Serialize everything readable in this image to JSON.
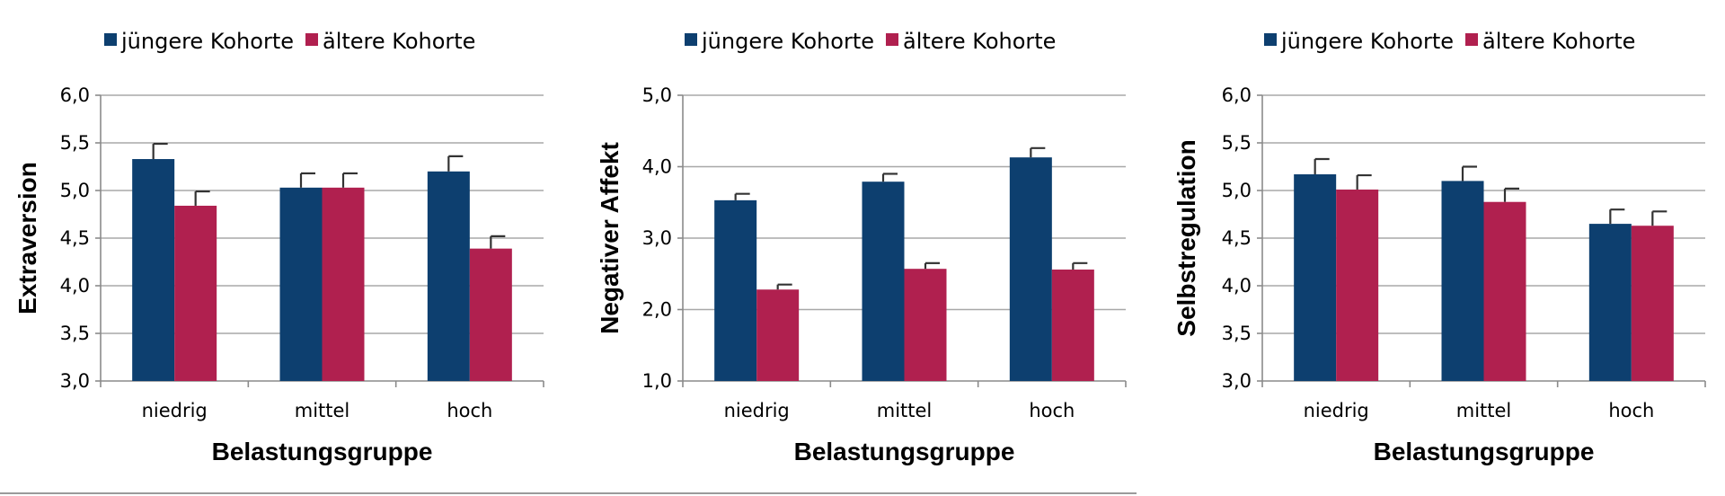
{
  "colors": {
    "young": "#0d3f6f",
    "old": "#b0204f"
  },
  "chart_data": [
    {
      "type": "bar",
      "legend": {
        "items": [
          "jüngere Kohorte",
          "ältere Kohorte"
        ],
        "position": "top-left"
      },
      "categories": [
        "niedrig",
        "mittel",
        "hoch"
      ],
      "series": [
        {
          "name": "jüngere Kohorte",
          "values": [
            5.33,
            5.03,
            5.2
          ],
          "errors": [
            0.16,
            0.15,
            0.16
          ]
        },
        {
          "name": "ältere Kohorte",
          "values": [
            4.84,
            5.03,
            4.39
          ],
          "errors": [
            0.15,
            0.15,
            0.13
          ]
        }
      ],
      "xlabel": "Belastungsgruppe",
      "ylabel": "Extraversion",
      "ylim": [
        3.0,
        6.0
      ],
      "yticks": [
        "3,0",
        "3,5",
        "4,0",
        "4,5",
        "5,0",
        "5,5",
        "6,0"
      ],
      "grid": true
    },
    {
      "type": "bar",
      "legend": {
        "items": [
          "jüngere Kohorte",
          "ältere Kohorte"
        ],
        "position": "top-left"
      },
      "categories": [
        "niedrig",
        "mittel",
        "hoch"
      ],
      "series": [
        {
          "name": "jüngere Kohorte",
          "values": [
            3.53,
            3.79,
            4.13
          ],
          "errors": [
            0.09,
            0.11,
            0.13
          ]
        },
        {
          "name": "ältere Kohorte",
          "values": [
            2.28,
            2.57,
            2.56
          ],
          "errors": [
            0.07,
            0.08,
            0.09
          ]
        }
      ],
      "xlabel": "Belastungsgruppe",
      "ylabel": "Negativer Affekt",
      "ylim": [
        1.0,
        5.0
      ],
      "yticks": [
        "1,0",
        "2,0",
        "3,0",
        "4,0",
        "5,0"
      ],
      "grid": true
    },
    {
      "type": "bar",
      "legend": {
        "items": [
          "jüngere Kohorte",
          "ältere Kohorte"
        ],
        "position": "top-left"
      },
      "categories": [
        "niedrig",
        "mittel",
        "hoch"
      ],
      "series": [
        {
          "name": "jüngere Kohorte",
          "values": [
            5.17,
            5.1,
            4.65
          ],
          "errors": [
            0.16,
            0.15,
            0.15
          ]
        },
        {
          "name": "ältere Kohorte",
          "values": [
            5.01,
            4.88,
            4.63
          ],
          "errors": [
            0.15,
            0.14,
            0.15
          ]
        }
      ],
      "xlabel": "Belastungsgruppe",
      "ylabel": "Selbstregulation",
      "ylim": [
        3.0,
        6.0
      ],
      "yticks": [
        "3,0",
        "3,5",
        "4,0",
        "4,5",
        "5,0",
        "5,5",
        "6,0"
      ],
      "grid": true
    }
  ]
}
